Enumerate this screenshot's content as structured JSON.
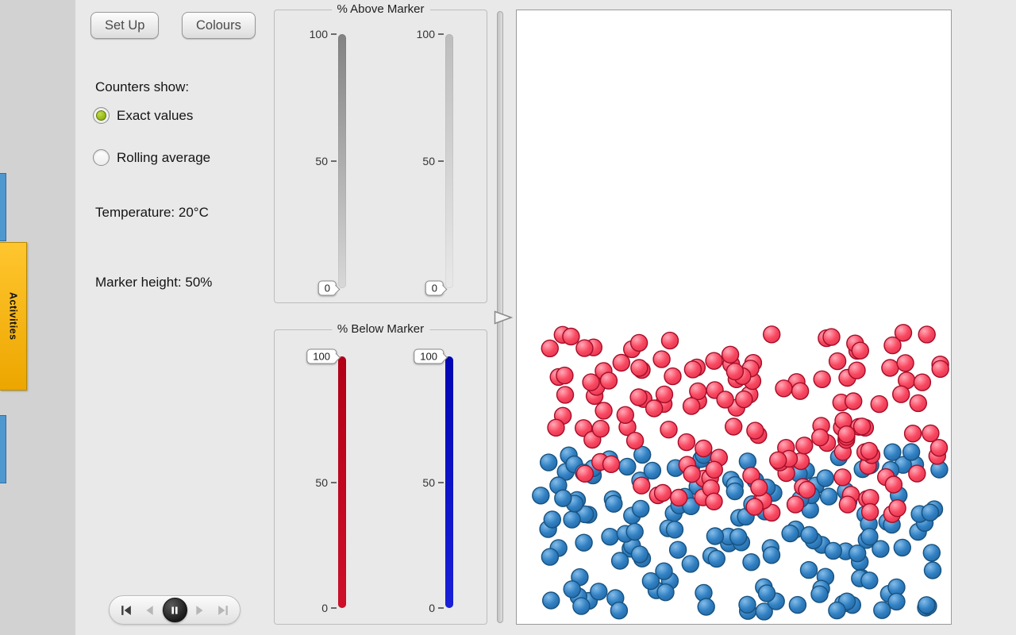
{
  "theme": {
    "page_bg": "#d2d2d2",
    "panel_bg": "#e9e9e9",
    "accent_red": "#c00018",
    "accent_blue": "#0a10c8"
  },
  "side": {
    "activities_tab": {
      "label": "Activities",
      "bg": "#f5b301"
    },
    "upper_tab_color": "#4f97cf",
    "lower_tab_color": "#4f97cf"
  },
  "toolbar": {
    "setup_label": "Set Up",
    "colours_label": "Colours"
  },
  "controls": {
    "counters_show_label": "Counters show:",
    "options": [
      {
        "label": "Exact values",
        "selected": true
      },
      {
        "label": "Rolling average",
        "selected": false
      }
    ],
    "temperature_text": "Temperature: 20°C",
    "marker_height_text": "Marker height: 50%"
  },
  "playback": {
    "buttons": [
      {
        "name": "skip-to-start",
        "enabled": true
      },
      {
        "name": "step-back",
        "enabled": false
      },
      {
        "name": "pause",
        "enabled": true
      },
      {
        "name": "step-forward",
        "enabled": false
      },
      {
        "name": "skip-to-end",
        "enabled": false
      }
    ]
  },
  "gauges": {
    "above": {
      "title": "% Above Marker",
      "sliders": [
        {
          "name": "red-above-gauge",
          "value": 0,
          "value_label": "0",
          "scale": [
            "100",
            "50",
            "0"
          ],
          "color_top": "#828282",
          "color_bottom": "#d8d8d8"
        },
        {
          "name": "blue-above-gauge",
          "value": 0,
          "value_label": "0",
          "scale": [
            "100",
            "50",
            "0"
          ],
          "color_top": "#bdbdbd",
          "color_bottom": "#e8e8e8"
        }
      ]
    },
    "below": {
      "title": "% Below Marker",
      "sliders": [
        {
          "name": "red-below-gauge",
          "value": 100,
          "value_label": "100",
          "scale": [
            "100",
            "50",
            "0"
          ],
          "color_top": "#b30016",
          "color_bottom": "#cf1028"
        },
        {
          "name": "blue-below-gauge",
          "value": 100,
          "value_label": "100",
          "scale": [
            "100",
            "50",
            "0"
          ],
          "color_top": "#0006b4",
          "color_bottom": "#1a20d8"
        }
      ]
    }
  },
  "marker": {
    "position_percent": 50
  },
  "simulation": {
    "seed": 20,
    "particle_radius": 10.5,
    "groups": [
      {
        "name": "blue-particles",
        "count": 158,
        "fill_light": "#85bce8",
        "fill": "#3181c4",
        "fill_dark": "#2566a0",
        "stroke": "#17527f",
        "x_min": 12,
        "x_max": 534,
        "y_min": 556,
        "y_max": 760
      },
      {
        "name": "red-particles",
        "count": 150,
        "fill_light": "#ffaab8",
        "fill": "#f94a62",
        "fill_dark": "#e3324e",
        "stroke": "#a50d28",
        "x_min": 12,
        "x_max": 534,
        "y_min": 404,
        "y_max": 636
      }
    ]
  }
}
